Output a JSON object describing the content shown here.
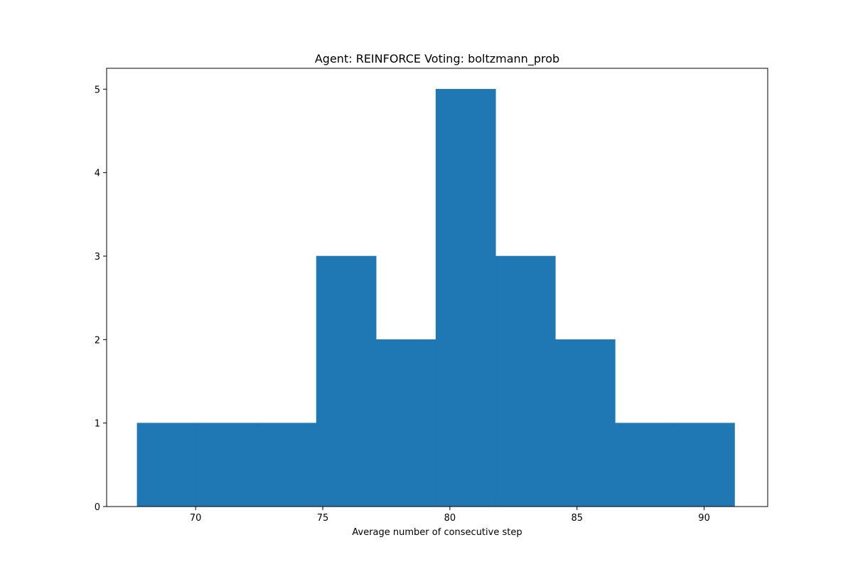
{
  "chart_data": {
    "type": "bar",
    "title": "Agent: REINFORCE Voting: boltzmann_prob",
    "xlabel": "Average number of consecutive step",
    "ylabel": "",
    "xlim": [
      66.5,
      92.5
    ],
    "ylim": [
      0,
      5.25
    ],
    "xticks": [
      70,
      75,
      80,
      85,
      90
    ],
    "yticks": [
      0,
      1,
      2,
      3,
      4,
      5
    ],
    "bin_edges": [
      67.7,
      70.05,
      72.4,
      74.75,
      77.1,
      79.45,
      81.8,
      84.15,
      86.5,
      88.85,
      91.2
    ],
    "values": [
      1,
      1,
      1,
      3,
      2,
      5,
      3,
      2,
      1,
      1
    ],
    "bar_color": "#1f77b4",
    "grid": false,
    "legend": "none"
  }
}
